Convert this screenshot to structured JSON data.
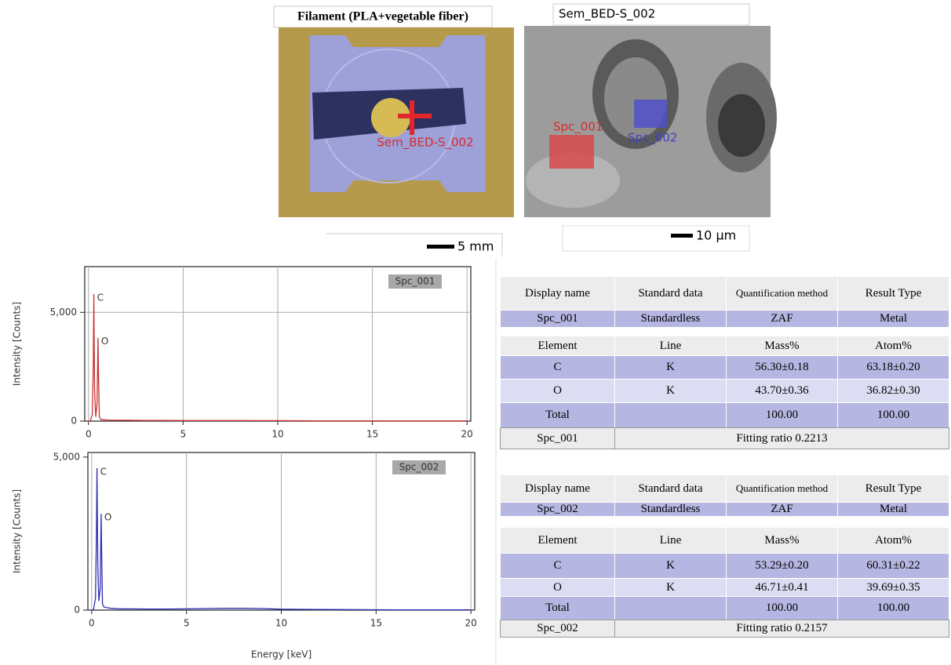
{
  "images": {
    "photo_title": "Filament (PLA+vegetable fiber)",
    "photo_marker_label": "Sem_BED-S_002",
    "sem_title": "Sem_BED-S_002",
    "sem_regions": [
      "Spc_001",
      "Spc_002"
    ],
    "scale_bars": [
      "5 mm",
      "10 µm"
    ]
  },
  "chart_data": [
    {
      "type": "line",
      "y_label": "Intensity [Counts]",
      "grid": "both",
      "x": [
        0,
        0.1,
        0.2,
        0.25,
        0.28,
        0.32,
        0.38,
        0.45,
        0.5,
        0.53,
        0.57,
        0.65,
        0.8,
        1,
        1.5,
        2,
        3,
        4,
        5,
        6,
        7,
        8,
        9,
        10,
        12,
        14,
        16,
        18,
        20
      ],
      "series": [
        {
          "name": "Spc_001",
          "color": "#c83232",
          "values": [
            0,
            20,
            300,
            2500,
            5840,
            1500,
            200,
            800,
            3830,
            2000,
            200,
            80,
            60,
            50,
            40,
            40,
            30,
            30,
            25,
            25,
            25,
            25,
            20,
            20,
            15,
            15,
            10,
            10,
            10
          ]
        }
      ],
      "annotations": [
        {
          "text": "C",
          "x": 0.28,
          "y": 5840
        },
        {
          "text": "O",
          "x": 0.5,
          "y": 3830
        }
      ],
      "xlim": [
        -0.2,
        20.2
      ],
      "ylim": [
        0,
        7100
      ],
      "xticks": [
        0,
        5,
        10,
        15,
        20
      ],
      "yticks": [
        0,
        {
          "value": 5000,
          "label": "5,000"
        }
      ]
    },
    {
      "type": "line",
      "y_label": "Intensity [Counts]",
      "x_label": "Energy [keV]",
      "grid": "x",
      "x": [
        0,
        0.1,
        0.2,
        0.25,
        0.28,
        0.32,
        0.38,
        0.45,
        0.5,
        0.53,
        0.57,
        0.65,
        0.8,
        1,
        1.5,
        2,
        3,
        4,
        5,
        6,
        7,
        8,
        9,
        10,
        12,
        14,
        16,
        18,
        20
      ],
      "series": [
        {
          "name": "Spc_002",
          "color": "#2e2eb4",
          "values": [
            0,
            20,
            400,
            2500,
            4640,
            1500,
            300,
            700,
            3150,
            1800,
            200,
            100,
            80,
            60,
            40,
            40,
            35,
            35,
            40,
            50,
            60,
            60,
            50,
            30,
            20,
            15,
            10,
            10,
            10
          ]
        }
      ],
      "annotations": [
        {
          "text": "C",
          "x": 0.28,
          "y": 4640
        },
        {
          "text": "O",
          "x": 0.5,
          "y": 3150
        }
      ],
      "xlim": [
        -0.2,
        20.2
      ],
      "ylim": [
        0,
        5150
      ],
      "xticks": [
        0,
        5,
        10,
        15,
        20
      ],
      "yticks": [
        0,
        {
          "value": 5000,
          "label": "5,000"
        }
      ]
    }
  ],
  "tables": [
    {
      "summary": {
        "header": [
          "Display name",
          "Standard data",
          "Quantification method",
          "Result Type"
        ],
        "row": [
          "Spc_001",
          "Standardless",
          "ZAF",
          "Metal"
        ]
      },
      "elements": {
        "header": [
          "Element",
          "Line",
          "Mass%",
          "Atom%"
        ],
        "rows": [
          [
            "C",
            "K",
            "56.30±0.18",
            "63.18±0.20"
          ],
          [
            "O",
            "K",
            "43.70±0.36",
            "36.82±0.30"
          ]
        ],
        "total": {
          "label": "Total",
          "mass": "100.00",
          "atom": "100.00"
        }
      },
      "footer": {
        "name": "Spc_001",
        "fitting": "Fitting ratio 0.2213"
      }
    },
    {
      "summary": {
        "header": [
          "Display name",
          "Standard data",
          "Quantification method",
          "Result Type"
        ],
        "row": [
          "Spc_002",
          "Standardless",
          "ZAF",
          "Metal"
        ]
      },
      "elements": {
        "header": [
          "Element",
          "Line",
          "Mass%",
          "Atom%"
        ],
        "rows": [
          [
            "C",
            "K",
            "53.29±0.20",
            "60.31±0.22"
          ],
          [
            "O",
            "K",
            "46.71±0.41",
            "39.69±0.35"
          ]
        ],
        "total": {
          "label": "Total",
          "mass": "100.00",
          "atom": "100.00"
        }
      },
      "footer": {
        "name": "Spc_002",
        "fitting": "Fitting ratio 0.2157"
      }
    }
  ]
}
